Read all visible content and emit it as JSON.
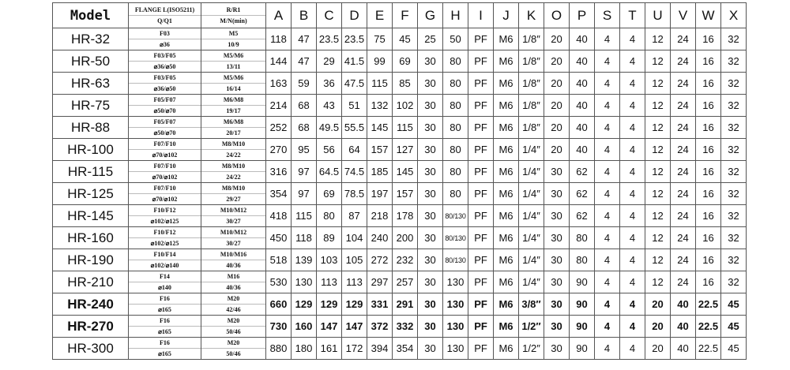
{
  "header": {
    "model": "Model",
    "flange_top": "FLANGE L(ISO5211)",
    "flange_bottom": "Q/Q1",
    "r_top": "R/R1",
    "r_bottom": "M/N(min)",
    "letters": [
      "A",
      "B",
      "C",
      "D",
      "E",
      "F",
      "G",
      "H",
      "I",
      "J",
      "K",
      "O",
      "P",
      "S",
      "T",
      "U",
      "V",
      "W",
      "X"
    ]
  },
  "rows": [
    {
      "model": "HR-32",
      "f1": "F03",
      "f2": "⌀36",
      "r1": "M5",
      "r2": "10/9",
      "v": [
        "118",
        "47",
        "23.5",
        "23.5",
        "75",
        "45",
        "25",
        "50",
        "PF",
        "M6",
        "1/8″",
        "20",
        "40",
        "4",
        "4",
        "12",
        "24",
        "16",
        "32"
      ]
    },
    {
      "model": "HR-50",
      "f1": "F03/F05",
      "f2": "⌀36/⌀50",
      "r1": "M5/M6",
      "r2": "13/11",
      "v": [
        "144",
        "47",
        "29",
        "41.5",
        "99",
        "69",
        "30",
        "80",
        "PF",
        "M6",
        "1/8″",
        "20",
        "40",
        "4",
        "4",
        "12",
        "24",
        "16",
        "32"
      ]
    },
    {
      "model": "HR-63",
      "f1": "F03/F05",
      "f2": "⌀36/⌀50",
      "r1": "M5/M6",
      "r2": "16/14",
      "v": [
        "163",
        "59",
        "36",
        "47.5",
        "115",
        "85",
        "30",
        "80",
        "PF",
        "M6",
        "1/8″",
        "20",
        "40",
        "4",
        "4",
        "12",
        "24",
        "16",
        "32"
      ]
    },
    {
      "model": "HR-75",
      "f1": "F05/F07",
      "f2": "⌀50/⌀70",
      "r1": "M6/M8",
      "r2": "19/17",
      "v": [
        "214",
        "68",
        "43",
        "51",
        "132",
        "102",
        "30",
        "80",
        "PF",
        "M6",
        "1/8″",
        "20",
        "40",
        "4",
        "4",
        "12",
        "24",
        "16",
        "32"
      ]
    },
    {
      "model": "HR-88",
      "f1": "F05/F07",
      "f2": "⌀50/⌀70",
      "r1": "M6/M8",
      "r2": "20/17",
      "v": [
        "252",
        "68",
        "49.5",
        "55.5",
        "145",
        "115",
        "30",
        "80",
        "PF",
        "M6",
        "1/8″",
        "20",
        "40",
        "4",
        "4",
        "12",
        "24",
        "16",
        "32"
      ]
    },
    {
      "model": "HR-100",
      "f1": "F07/F10",
      "f2": "⌀70/⌀102",
      "r1": "M8/M10",
      "r2": "24/22",
      "v": [
        "270",
        "95",
        "56",
        "64",
        "157",
        "127",
        "30",
        "80",
        "PF",
        "M6",
        "1/4″",
        "20",
        "40",
        "4",
        "4",
        "12",
        "24",
        "16",
        "32"
      ]
    },
    {
      "model": "HR-115",
      "f1": "F07/F10",
      "f2": "⌀70/⌀102",
      "r1": "M8/M10",
      "r2": "24/22",
      "v": [
        "316",
        "97",
        "64.5",
        "74.5",
        "185",
        "145",
        "30",
        "80",
        "PF",
        "M6",
        "1/4″",
        "30",
        "62",
        "4",
        "4",
        "12",
        "24",
        "16",
        "32"
      ]
    },
    {
      "model": "HR-125",
      "f1": "F07/F10",
      "f2": "⌀70/⌀102",
      "r1": "M8/M10",
      "r2": "29/27",
      "v": [
        "354",
        "97",
        "69",
        "78.5",
        "197",
        "157",
        "30",
        "80",
        "PF",
        "M6",
        "1/4″",
        "30",
        "62",
        "4",
        "4",
        "12",
        "24",
        "16",
        "32"
      ]
    },
    {
      "model": "HR-145",
      "f1": "F10/F12",
      "f2": "⌀102/⌀125",
      "r1": "M10/M12",
      "r2": "30/27",
      "v": [
        "418",
        "115",
        "80",
        "87",
        "218",
        "178",
        "30",
        "80/130",
        "PF",
        "M6",
        "1/4″",
        "30",
        "62",
        "4",
        "4",
        "12",
        "24",
        "16",
        "32"
      ]
    },
    {
      "model": "HR-160",
      "f1": "F10/F12",
      "f2": "⌀102/⌀125",
      "r1": "M10/M12",
      "r2": "30/27",
      "v": [
        "450",
        "118",
        "89",
        "104",
        "240",
        "200",
        "30",
        "80/130",
        "PF",
        "M6",
        "1/4″",
        "30",
        "80",
        "4",
        "4",
        "12",
        "24",
        "16",
        "32"
      ]
    },
    {
      "model": "HR-190",
      "f1": "F10/F14",
      "f2": "⌀102/⌀140",
      "r1": "M10/M16",
      "r2": "40/36",
      "v": [
        "518",
        "139",
        "103",
        "105",
        "272",
        "232",
        "30",
        "80/130",
        "PF",
        "M6",
        "1/4″",
        "30",
        "80",
        "4",
        "4",
        "12",
        "24",
        "16",
        "32"
      ]
    },
    {
      "model": "HR-210",
      "f1": "F14",
      "f2": "⌀140",
      "r1": "M16",
      "r2": "40/36",
      "v": [
        "530",
        "130",
        "113",
        "113",
        "297",
        "257",
        "30",
        "130",
        "PF",
        "M6",
        "1/4″",
        "30",
        "90",
        "4",
        "4",
        "12",
        "24",
        "16",
        "32"
      ]
    },
    {
      "model": "HR-240",
      "f1": "F16",
      "f2": "⌀165",
      "r1": "M20",
      "r2": "42/46",
      "v": [
        "660",
        "129",
        "129",
        "129",
        "331",
        "291",
        "30",
        "130",
        "PF",
        "M6",
        "3/8″",
        "30",
        "90",
        "4",
        "4",
        "20",
        "40",
        "22.5",
        "45"
      ],
      "bold": true
    },
    {
      "model": "HR-270",
      "f1": "F16",
      "f2": "⌀165",
      "r1": "M20",
      "r2": "50/46",
      "v": [
        "730",
        "160",
        "147",
        "147",
        "372",
        "332",
        "30",
        "130",
        "PF",
        "M6",
        "1/2″",
        "30",
        "90",
        "4",
        "4",
        "20",
        "40",
        "22.5",
        "45"
      ],
      "bold": true
    },
    {
      "model": "HR-300",
      "f1": "F16",
      "f2": "⌀165",
      "r1": "M20",
      "r2": "50/46",
      "v": [
        "880",
        "180",
        "161",
        "172",
        "394",
        "354",
        "30",
        "130",
        "PF",
        "M6",
        "1/2″",
        "30",
        "90",
        "4",
        "4",
        "20",
        "40",
        "22.5",
        "45"
      ]
    }
  ]
}
